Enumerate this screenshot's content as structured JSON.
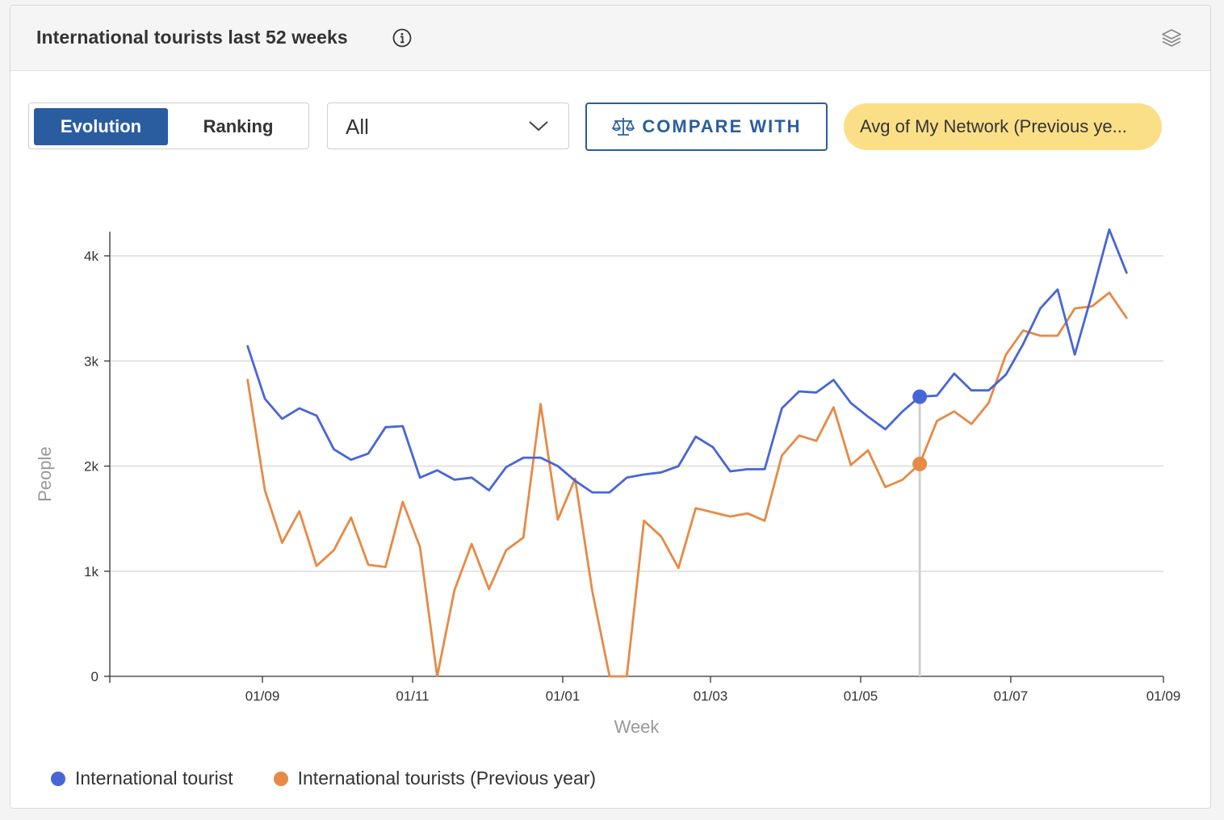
{
  "header": {
    "title": "International tourists last 52 weeks"
  },
  "controls": {
    "toggle": {
      "evolution_label": "Evolution",
      "ranking_label": "Ranking",
      "selected": "Evolution"
    },
    "filter": {
      "value": "All"
    },
    "compare_label": "COMPARE WITH",
    "compare_pill": "Avg of My Network (Previous ye..."
  },
  "colors": {
    "accent": "#2a5d9f",
    "series_current": "#4766d6",
    "series_previous": "#e68a45",
    "pill": "#fbdf87"
  },
  "chart_data": {
    "type": "line",
    "title": "",
    "xlabel": "Week",
    "ylabel": "People",
    "ylim": [
      0,
      4000
    ],
    "yticks": [
      0,
      1000,
      2000,
      3000,
      4000
    ],
    "ytick_labels": [
      "0",
      "1k",
      "2k",
      "3k",
      "4k"
    ],
    "xlim": [
      "2023-07-01",
      "2024-09-01"
    ],
    "xticks": [
      "2023-09-01",
      "2023-11-01",
      "2024-01-01",
      "2024-03-01",
      "2024-05-01",
      "2024-07-01",
      "2024-09-01"
    ],
    "xtick_labels": [
      "01/09",
      "01/11",
      "01/01",
      "01/03",
      "01/05",
      "01/07",
      "01/09"
    ],
    "grid": true,
    "legend_position": "bottom-left",
    "highlight": {
      "x": "2024-05-25",
      "values": [
        2660,
        2020
      ]
    },
    "x": [
      "2023-08-26",
      "2023-09-02",
      "2023-09-09",
      "2023-09-16",
      "2023-09-23",
      "2023-09-30",
      "2023-10-07",
      "2023-10-14",
      "2023-10-21",
      "2023-10-28",
      "2023-11-04",
      "2023-11-11",
      "2023-11-18",
      "2023-11-25",
      "2023-12-02",
      "2023-12-09",
      "2023-12-16",
      "2023-12-23",
      "2023-12-30",
      "2024-01-06",
      "2024-01-13",
      "2024-01-20",
      "2024-01-27",
      "2024-02-03",
      "2024-02-10",
      "2024-02-17",
      "2024-02-24",
      "2024-03-02",
      "2024-03-09",
      "2024-03-16",
      "2024-03-23",
      "2024-03-30",
      "2024-04-06",
      "2024-04-13",
      "2024-04-20",
      "2024-04-27",
      "2024-05-04",
      "2024-05-11",
      "2024-05-18",
      "2024-05-25",
      "2024-06-01",
      "2024-06-08",
      "2024-06-15",
      "2024-06-22",
      "2024-06-29",
      "2024-07-06",
      "2024-07-13",
      "2024-07-20",
      "2024-07-27",
      "2024-08-03",
      "2024-08-10",
      "2024-08-17"
    ],
    "series": [
      {
        "name": "International tourist",
        "values": [
          3140,
          2640,
          2450,
          2550,
          2480,
          2160,
          2060,
          2120,
          2370,
          2380,
          1890,
          1960,
          1870,
          1890,
          1770,
          1990,
          2080,
          2080,
          2000,
          1860,
          1750,
          1750,
          1890,
          1920,
          1940,
          2000,
          2280,
          2180,
          1950,
          1970,
          1970,
          2550,
          2710,
          2700,
          2820,
          2600,
          2470,
          2350,
          2520,
          2660,
          2670,
          2880,
          2720,
          2720,
          2870,
          3160,
          3500,
          3680,
          3060,
          3640,
          4250,
          3840
        ]
      },
      {
        "name": "International tourists (Previous year)",
        "values": [
          2820,
          1770,
          1270,
          1570,
          1050,
          1200,
          1510,
          1060,
          1040,
          1660,
          1230,
          0,
          820,
          1260,
          830,
          1200,
          1320,
          2590,
          1490,
          1880,
          810,
          0,
          0,
          1480,
          1330,
          1030,
          1600,
          1560,
          1520,
          1550,
          1480,
          2100,
          2290,
          2240,
          2560,
          2010,
          2150,
          1800,
          1870,
          2020,
          2430,
          2520,
          2400,
          2600,
          3060,
          3290,
          3240,
          3240,
          3500,
          3520,
          3650,
          3410
        ]
      }
    ]
  }
}
